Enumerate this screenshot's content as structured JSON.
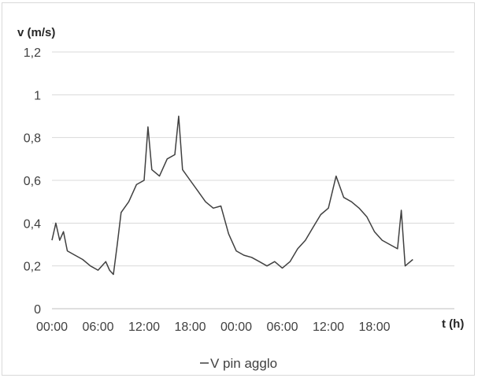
{
  "chart_data": {
    "type": "line",
    "ylabel": "v (m/s)",
    "xlabel": "t (h)",
    "ylim": [
      0,
      1.2
    ],
    "yticks": [
      "0",
      "0,2",
      "0,4",
      "0,6",
      "0,8",
      "1",
      "1,2"
    ],
    "xticks": [
      "00:00",
      "06:00",
      "12:00",
      "18:00",
      "00:00",
      "06:00",
      "12:00",
      "18:00"
    ],
    "grid": "horizontal",
    "legend_position": "bottom",
    "series": [
      {
        "name": "V pin agglo",
        "color": "#404040",
        "x": [
          0,
          0.5,
          1,
          1.5,
          2,
          3,
          4,
          5,
          6,
          7,
          7.5,
          8,
          8.5,
          9,
          10,
          11,
          12,
          12.5,
          13,
          14,
          15,
          16,
          16.5,
          17,
          18,
          19,
          20,
          21,
          22,
          23,
          24,
          25,
          26,
          27,
          28,
          29,
          30,
          31,
          32,
          33,
          34,
          35,
          36,
          37,
          38,
          39,
          40,
          41,
          42,
          43,
          44,
          45,
          45.5,
          46,
          47
        ],
        "y": [
          0.32,
          0.4,
          0.32,
          0.36,
          0.27,
          0.25,
          0.23,
          0.2,
          0.18,
          0.22,
          0.18,
          0.16,
          0.3,
          0.45,
          0.5,
          0.58,
          0.6,
          0.85,
          0.65,
          0.62,
          0.7,
          0.72,
          0.9,
          0.65,
          0.6,
          0.55,
          0.5,
          0.47,
          0.48,
          0.35,
          0.27,
          0.25,
          0.24,
          0.22,
          0.2,
          0.22,
          0.19,
          0.22,
          0.28,
          0.32,
          0.38,
          0.44,
          0.47,
          0.62,
          0.52,
          0.5,
          0.47,
          0.43,
          0.36,
          0.32,
          0.3,
          0.28,
          0.46,
          0.2,
          0.23
        ]
      }
    ]
  }
}
